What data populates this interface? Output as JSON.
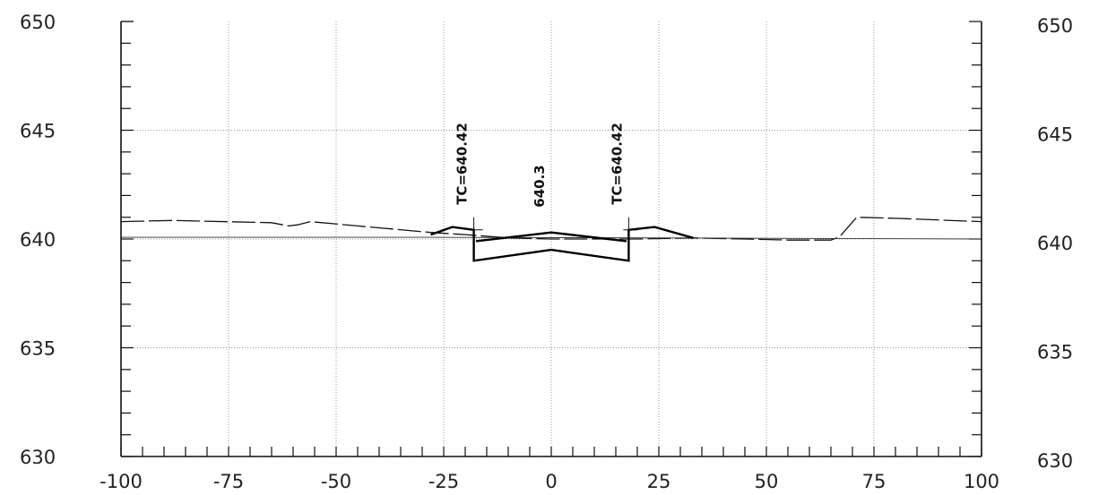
{
  "chart_data": {
    "type": "line",
    "title": "",
    "xlabel": "",
    "ylabel": "",
    "xlim": [
      -100,
      100
    ],
    "ylim": [
      630,
      650
    ],
    "grid": true,
    "x_ticks": [
      -100,
      -75,
      -50,
      -25,
      0,
      25,
      50,
      75,
      100
    ],
    "y_ticks": [
      630,
      635,
      640,
      645,
      650
    ],
    "x_tick_labels": [
      "-100",
      "-75",
      "-50",
      "-25",
      "0",
      "25",
      "50",
      "75",
      "100"
    ],
    "y_tick_labels": [
      "630",
      "635",
      "640",
      "645",
      "650"
    ],
    "series": [
      {
        "style": "dashed-thin",
        "points": [
          [
            -100,
            640.8
          ],
          [
            -88,
            640.85
          ],
          [
            -65,
            640.75
          ],
          [
            -61,
            640.6
          ],
          [
            -59,
            640.65
          ],
          [
            -56,
            640.8
          ],
          [
            -45,
            640.6
          ],
          [
            -28,
            640.3
          ],
          [
            -20,
            640.2
          ],
          [
            -10,
            640.05
          ],
          [
            0,
            640.0
          ],
          [
            10,
            640.0
          ],
          [
            20,
            640.0
          ],
          [
            33,
            640.05
          ],
          [
            45,
            640.0
          ],
          [
            55,
            639.95
          ],
          [
            65,
            639.95
          ],
          [
            67,
            640.1
          ],
          [
            71,
            641.0
          ],
          [
            80,
            640.95
          ],
          [
            100,
            640.8
          ]
        ]
      },
      {
        "style": "solid-thin",
        "points": [
          [
            -100,
            640.08
          ],
          [
            -30,
            640.08
          ],
          [
            30,
            640.05
          ],
          [
            100,
            640.0
          ]
        ]
      },
      {
        "style": "solid-bold",
        "segments": [
          [
            [
              -28,
              640.2
            ],
            [
              -23,
              640.55
            ],
            [
              -18,
              640.42
            ],
            [
              -18,
              639.0
            ],
            [
              0,
              639.5
            ],
            [
              18,
              639.0
            ],
            [
              18,
              640.42
            ],
            [
              24,
              640.55
            ],
            [
              33,
              640.05
            ]
          ],
          [
            [
              -17.5,
              639.9
            ],
            [
              0,
              640.3
            ],
            [
              17.5,
              639.9
            ]
          ]
        ]
      }
    ],
    "annotations": [
      {
        "text": "TC=640.42",
        "x": -18,
        "y": 640.42
      },
      {
        "text": "640.3",
        "x": 0,
        "y": 640.3
      },
      {
        "text": "TC=640.42",
        "x": 18,
        "y": 640.42
      }
    ]
  }
}
